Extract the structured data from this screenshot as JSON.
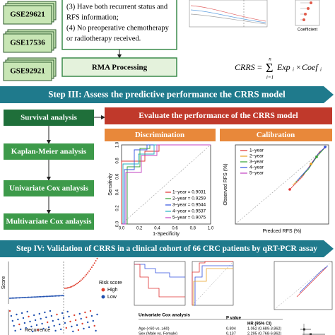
{
  "datasets": [
    "GSE29621",
    "GSE17536",
    "GSE92921"
  ],
  "criteria": [
    "(3) Have both recurrent status and",
    "RFS information;",
    "(4) No preoperative chemotherapy",
    "or radiotherapy received."
  ],
  "rma": "RMA Processing",
  "coefficient_plot": {
    "x_label": "Coefficient"
  },
  "formula": {
    "lhs": "CRRS",
    "eq": "=",
    "upper": "n",
    "lower": "i=1",
    "term1": "Exp",
    "times": "×",
    "term2": "Coef",
    "sub": "i"
  },
  "step3": "Step III: Assess the predictive performance the CRRS model",
  "left_steps": [
    "Survival analysis",
    "Kaplan-Meier analysis",
    "Univariate Cox anlaysis",
    "Multivariate Cox anlaysis"
  ],
  "evaluate": "Evaluate the performance of the CRRS model",
  "discrimination": "Discrimination",
  "calibration": "Calibration",
  "roc": {
    "y_label": "Sensitivity",
    "x_label": "1-Specificity",
    "ticks": [
      "0.0",
      "0.2",
      "0.4",
      "0.6",
      "0.8",
      "1.0"
    ],
    "legend": [
      "1–year = 0.9031",
      "2–year = 0.9259",
      "3–year = 0.9544",
      "4–year = 0.9537",
      "5–year = 0.9075"
    ]
  },
  "calib": {
    "y_label": "Observed RFS (%)",
    "x_label": "Predced RFS (%)",
    "legend": [
      "1–year",
      "2–year",
      "3–year",
      "4–year",
      "5–year"
    ]
  },
  "step4": "Step IV: Validation of CRRS in a clinical cohort of 66 CRC patients by qRT-PCR assay",
  "risk": {
    "y_label": "Score",
    "legend_title": "Risk score",
    "high": "High",
    "low": "Low",
    "recurrence": "Recurrence"
  },
  "cox": {
    "title": "Univariate Cox analysis",
    "p_header": "P value",
    "hr_header": "HR (95% CI)",
    "rows": [
      [
        "Age (<60 vs. ≥60)",
        "0.804",
        "1.052 (0.689-3.862)"
      ],
      [
        "Sex (Male vs. Female)",
        "0.137",
        "2.295 (0.768-6.862)"
      ]
    ]
  }
}
